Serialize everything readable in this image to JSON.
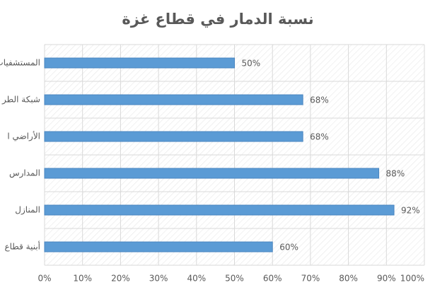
{
  "chart_data": {
    "type": "hbar",
    "title": "نسبة الدمار في قطاع غزة",
    "categories": [
      "المستشفيات",
      "شبكة الطر",
      "الأراضي ا",
      "المدارس",
      "المنازل",
      "أبنية قطاع"
    ],
    "values": [
      50,
      68,
      68,
      88,
      92,
      60
    ],
    "value_labels": [
      "50%",
      "68%",
      "68%",
      "88%",
      "92%",
      "60%"
    ],
    "color": "#5b9bd5",
    "xlim": [
      0,
      100
    ],
    "xticks": [
      {
        "value": 0,
        "label": "0%"
      },
      {
        "value": 10,
        "label": "10%"
      },
      {
        "value": 20,
        "label": "20%"
      },
      {
        "value": 30,
        "label": "30%"
      },
      {
        "value": 40,
        "label": "40%"
      },
      {
        "value": 50,
        "label": "50%"
      },
      {
        "value": 60,
        "label": "60%"
      },
      {
        "value": 70,
        "label": "70%"
      },
      {
        "value": 80,
        "label": "80%"
      },
      {
        "value": 90,
        "label": "90%"
      },
      {
        "value": 100,
        "label": "100%"
      }
    ],
    "grid": true
  }
}
